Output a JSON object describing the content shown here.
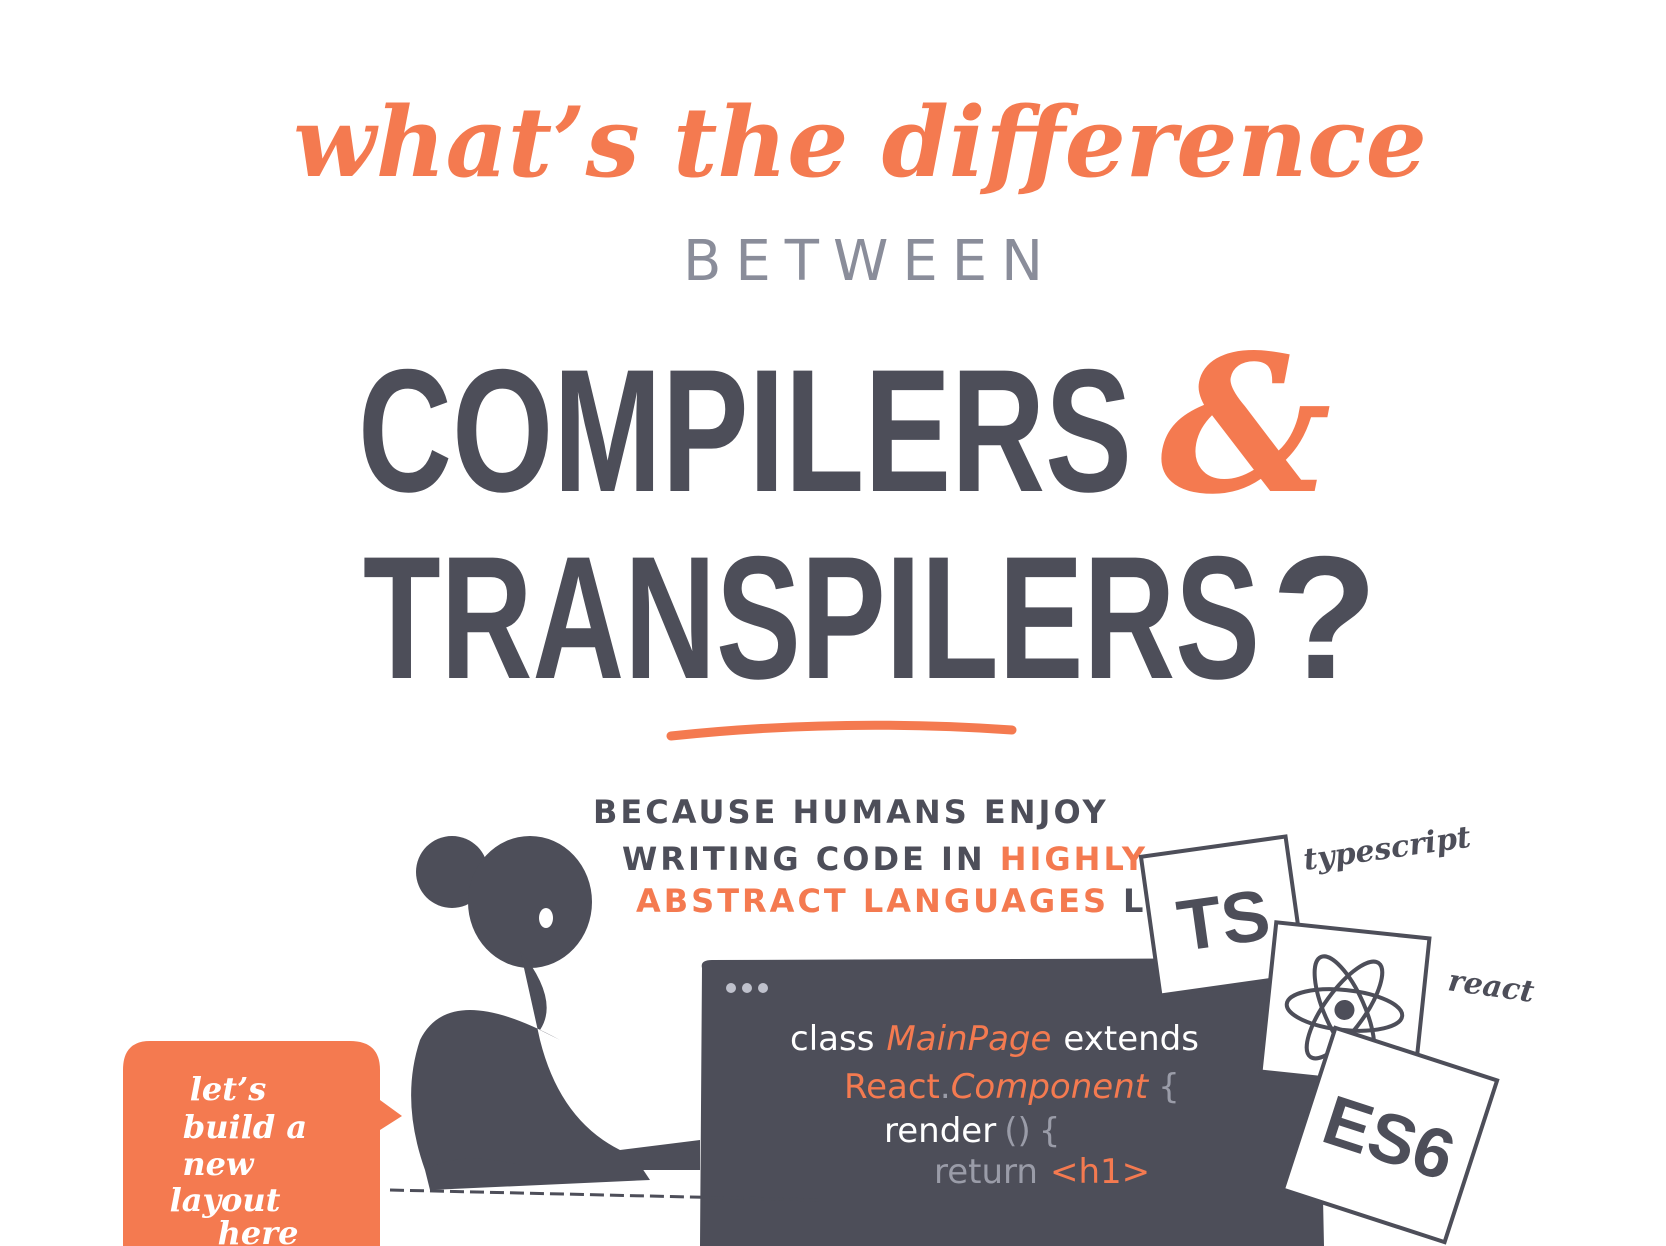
{
  "header": {
    "line1": "what’s the difference",
    "line2": "BETWEEN",
    "line3": "COMPILERS",
    "ampersand": "&",
    "line4": "TRANSPILERS",
    "question": "?"
  },
  "caption": {
    "line1": "BECAUSE HUMANS ENJOY",
    "line2": "WRITING CODE IN",
    "line2_highlight": "HIGHLY",
    "line3_highlight": "ABSTRACT LANGUAGES",
    "line3": "LIKE"
  },
  "code": [
    [
      "class",
      "MainPage",
      "extends"
    ],
    [
      "React",
      ".",
      "Component",
      "{"
    ],
    [
      "render",
      "()",
      "{"
    ],
    [
      "return",
      "<h1>"
    ]
  ],
  "logos": [
    {
      "badge": "TS",
      "name": "typescript"
    },
    {
      "name": "react"
    },
    {
      "badge": "ES6"
    }
  ],
  "bubble": [
    "let’s",
    "build a",
    "new",
    "layout",
    "here"
  ]
}
